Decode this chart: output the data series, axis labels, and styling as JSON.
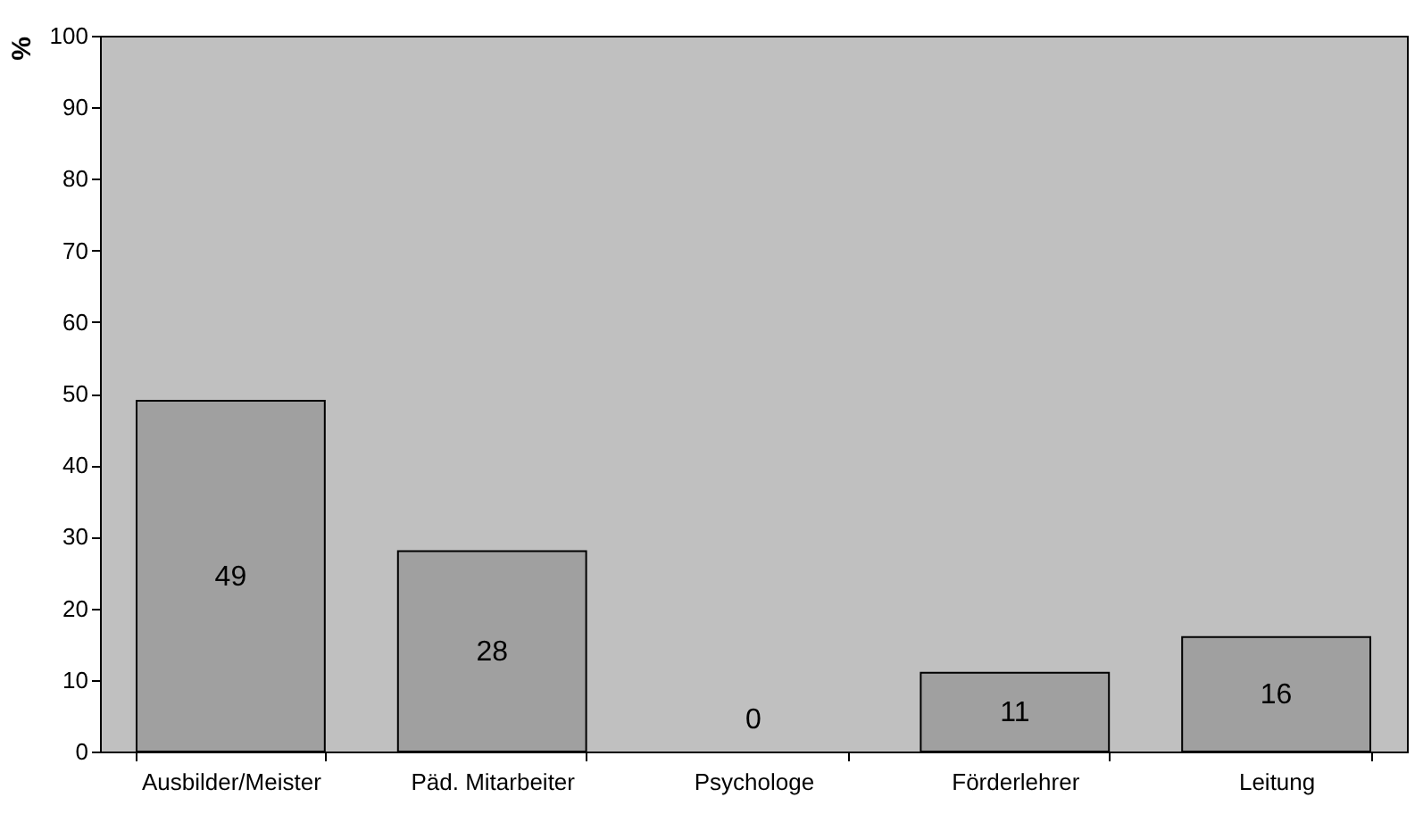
{
  "chart_data": {
    "type": "bar",
    "ylabel": "%",
    "categories": [
      "Ausbilder/Meister",
      "Päd. Mitarbeiter",
      "Psychologe",
      "Förderlehrer",
      "Leitung"
    ],
    "values": [
      49,
      28,
      0,
      11,
      16
    ],
    "color": "#a0a0a0",
    "ylim": [
      0,
      100
    ],
    "yticks": [
      0,
      10,
      20,
      30,
      40,
      50,
      60,
      70,
      80,
      90,
      100
    ],
    "grid": false,
    "data_labels": true
  }
}
